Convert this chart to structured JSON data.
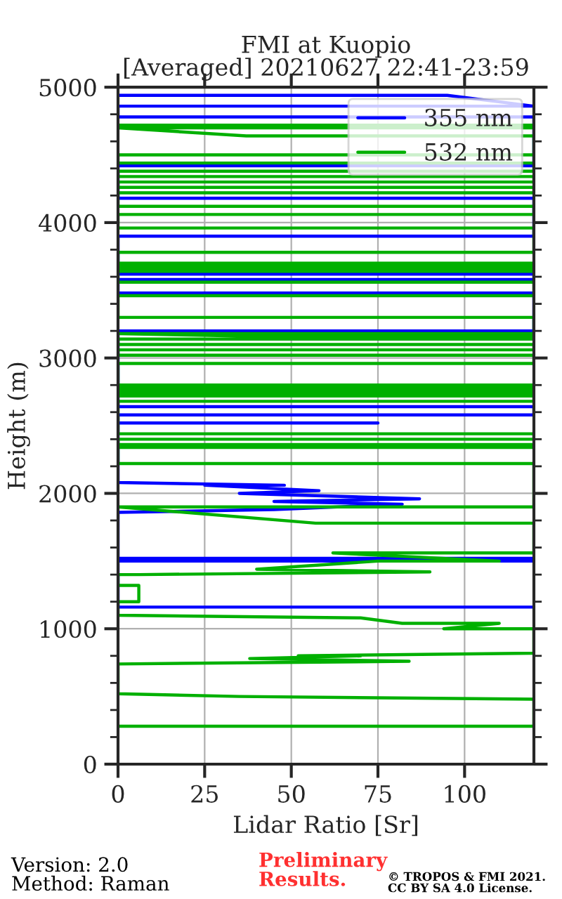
{
  "chart_data": {
    "type": "line",
    "title": "FMI at Kuopio\n[Averaged] 20210627 22:41-23:59",
    "xlabel": "Lidar Ratio [Sr]",
    "ylabel": "Height (m)",
    "xlim": [
      0,
      120
    ],
    "xticks": [
      0,
      25,
      50,
      75,
      100
    ],
    "ylim": [
      0,
      5000
    ],
    "yticks": [
      0,
      1000,
      2000,
      3000,
      4000,
      5000
    ],
    "grid": true,
    "legend": "top right",
    "series": [
      {
        "name": "355 nm",
        "color": "#0000ff",
        "x": [
          0,
          95,
          120,
          0,
          0,
          120,
          120,
          0,
          0,
          120,
          120,
          0,
          0,
          120,
          120,
          0,
          0,
          120,
          120,
          0,
          0,
          120,
          120,
          0,
          0,
          75,
          0,
          0,
          48,
          25,
          58,
          35,
          87,
          45,
          82,
          45,
          0,
          0,
          120,
          120,
          0,
          0,
          120
        ],
        "values": [
          4940,
          4940,
          4860,
          4860,
          4780,
          4780,
          4420,
          4420,
          4180,
          4180,
          3900,
          3900,
          3620,
          3620,
          3580,
          3580,
          3480,
          3480,
          3200,
          3200,
          2640,
          2640,
          2580,
          2580,
          2520,
          2520,
          2520,
          2080,
          2060,
          2060,
          2020,
          2000,
          1960,
          1940,
          1920,
          1880,
          1860,
          1520,
          1520,
          1500,
          1500,
          1160,
          1160
        ]
      },
      {
        "name": "532 nm",
        "color": "#00b000",
        "x": [
          0,
          120,
          120,
          0,
          37,
          120,
          120,
          0,
          0,
          120,
          120,
          0,
          0,
          120,
          120,
          0,
          0,
          120,
          120,
          0,
          0,
          120,
          120,
          0,
          0,
          120,
          120,
          0,
          0,
          120,
          120,
          0,
          0,
          120,
          120,
          0,
          0,
          120,
          120,
          0,
          0,
          120,
          120,
          0,
          40,
          120,
          120,
          0,
          0,
          120,
          120,
          0,
          0,
          120,
          120,
          0,
          0,
          120,
          120,
          0,
          0,
          120,
          120,
          0,
          0,
          120,
          120,
          0,
          0,
          120,
          120,
          0,
          0,
          120,
          120,
          0,
          0,
          120,
          120,
          0,
          57,
          120,
          120,
          62,
          110,
          75,
          40,
          90,
          6,
          0,
          0,
          6,
          6,
          0,
          0,
          70,
          82,
          110,
          94,
          120,
          120,
          52,
          70,
          38,
          84,
          0,
          0,
          35,
          120,
          120,
          0
        ],
        "values": [
          4720,
          4720,
          4700,
          4700,
          4640,
          4640,
          4500,
          4500,
          4440,
          4440,
          4380,
          4380,
          4340,
          4340,
          4300,
          4300,
          4260,
          4260,
          4220,
          4220,
          4120,
          4120,
          4060,
          4060,
          3960,
          3960,
          3780,
          3780,
          3700,
          3700,
          3680,
          3680,
          3660,
          3660,
          3640,
          3640,
          3560,
          3560,
          3460,
          3460,
          3300,
          3300,
          3180,
          3180,
          3160,
          3160,
          3140,
          3140,
          3100,
          3100,
          3060,
          3060,
          3020,
          3020,
          2960,
          2960,
          2800,
          2800,
          2780,
          2780,
          2760,
          2760,
          2740,
          2740,
          2720,
          2720,
          2680,
          2680,
          2440,
          2440,
          2400,
          2400,
          2360,
          2360,
          2340,
          2340,
          2220,
          2220,
          1900,
          1900,
          1780,
          1780,
          1560,
          1560,
          1500,
          1500,
          1440,
          1420,
          1400,
          1400,
          1320,
          1320,
          1200,
          1200,
          1100,
          1080,
          1040,
          1040,
          1000,
          1000,
          820,
          800,
          800,
          780,
          760,
          740,
          520,
          500,
          480,
          280,
          280
        ]
      }
    ],
    "annotations": [
      "Version: 2.0\nMethod: Raman",
      "Preliminary\nResults.",
      "© TROPOS & FMI 2021.\nCC BY SA 4.0 License."
    ]
  }
}
